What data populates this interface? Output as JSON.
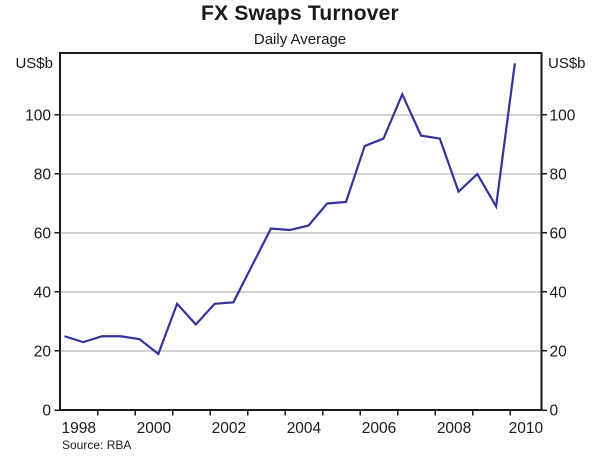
{
  "chart_data": {
    "type": "line",
    "title": "FX Swaps Turnover",
    "subtitle": "Daily Average",
    "ylabel_left": "US$b",
    "ylabel_right": "US$b",
    "source": "Source: RBA",
    "ylim": [
      0,
      121
    ],
    "yticks": [
      0,
      20,
      40,
      60,
      80,
      100
    ],
    "xlim": [
      1998,
      2010.83
    ],
    "x_labeled_years": [
      "1998",
      "2000",
      "2002",
      "2004",
      "2006",
      "2008",
      "2010"
    ],
    "x_minor_tick_years": [
      1999,
      2000,
      2001,
      2002,
      2003,
      2004,
      2005,
      2006,
      2007,
      2008,
      2009,
      2010
    ],
    "grid": "horizontal",
    "legend": "none",
    "series": [
      {
        "name": "FX swaps turnover, daily average",
        "x": [
          1998.12,
          1998.62,
          1999.12,
          1999.62,
          2000.12,
          2000.62,
          2001.12,
          2001.62,
          2002.12,
          2002.62,
          2003.12,
          2003.62,
          2004.12,
          2004.62,
          2005.12,
          2005.62,
          2006.12,
          2006.62,
          2007.12,
          2007.62,
          2008.12,
          2008.62,
          2009.12,
          2009.62,
          2010.12
        ],
        "values": [
          25,
          23,
          25,
          25,
          24,
          19,
          36,
          29,
          36,
          36.5,
          49,
          61.5,
          61,
          62.5,
          70,
          70.5,
          89.5,
          92,
          107,
          93,
          92,
          74,
          80,
          69,
          117.5
        ]
      }
    ],
    "colors": {
      "line": "#333399",
      "grid": "#a3a3a3",
      "axis": "#1a1a1a",
      "text": "#1a1a1a",
      "background": "#ffffff"
    }
  }
}
